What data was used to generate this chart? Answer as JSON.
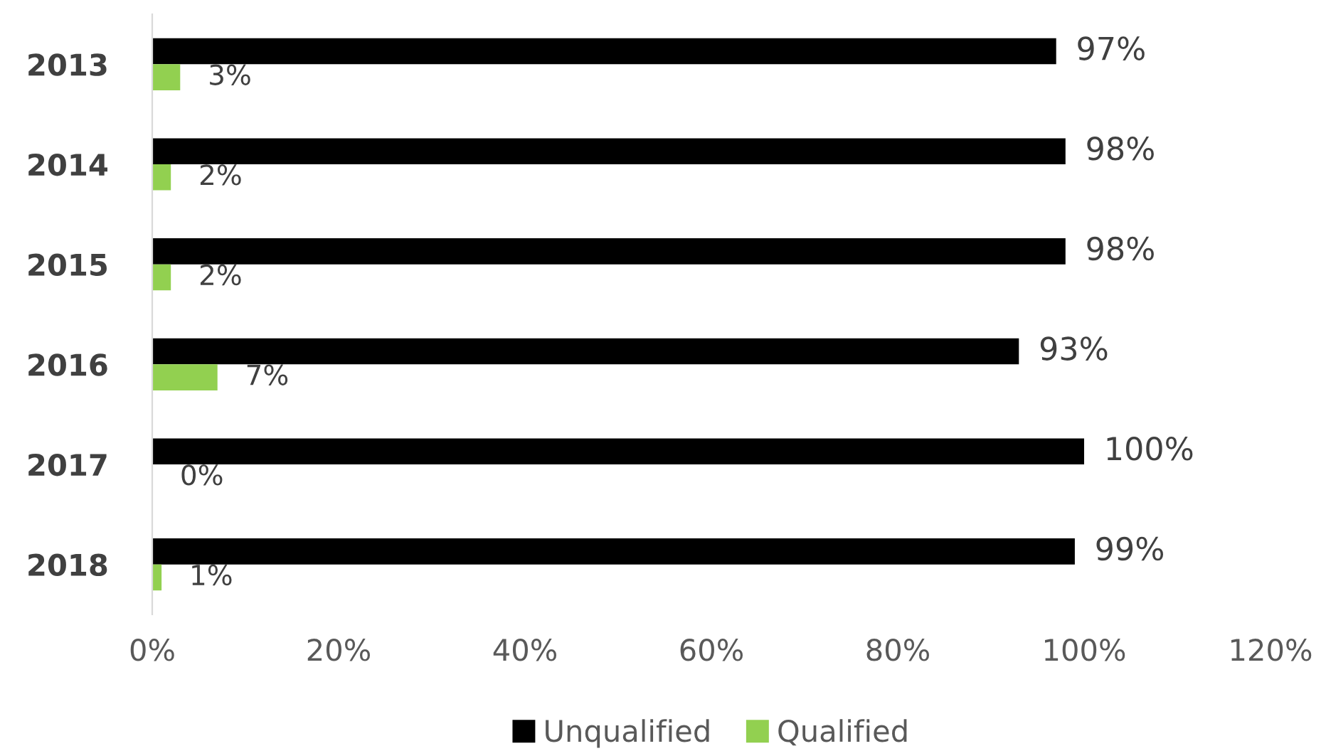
{
  "chart_data": {
    "type": "bar",
    "orientation": "horizontal",
    "categories": [
      "2013",
      "2014",
      "2015",
      "2016",
      "2017",
      "2018"
    ],
    "series": [
      {
        "name": "Unqualified",
        "color": "#000000",
        "values": [
          97,
          98,
          98,
          93,
          100,
          99
        ],
        "value_labels": [
          "97%",
          "98%",
          "98%",
          "93%",
          "100%",
          "99%"
        ]
      },
      {
        "name": "Qualified",
        "color": "#92d050",
        "values": [
          3,
          2,
          2,
          7,
          0,
          1
        ],
        "value_labels": [
          "3%",
          "2%",
          "2%",
          "7%",
          "0%",
          "1%"
        ]
      }
    ],
    "xlim": [
      0,
      120
    ],
    "xticks": [
      {
        "value": 0,
        "label": "0%"
      },
      {
        "value": 20,
        "label": "20%"
      },
      {
        "value": 40,
        "label": "40%"
      },
      {
        "value": 60,
        "label": "60%"
      },
      {
        "value": 80,
        "label": "80%"
      },
      {
        "value": 100,
        "label": "100%"
      },
      {
        "value": 120,
        "label": "120%"
      }
    ],
    "grid": false,
    "legend": "bottom"
  }
}
